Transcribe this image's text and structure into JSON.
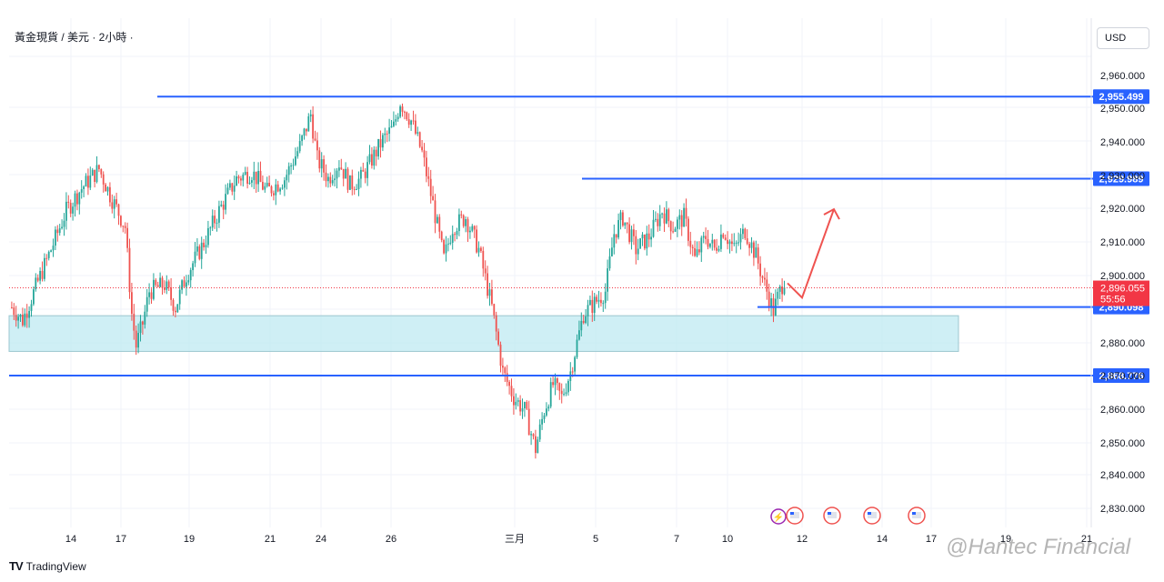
{
  "header": {
    "symbol_title": "黃金現貨 / 美元 · 2小時 ·"
  },
  "currency_button": {
    "label": "USD"
  },
  "branding": {
    "tradingview": "TradingView",
    "watermark": "@Hantec Financial"
  },
  "colors": {
    "up": "#26a69a",
    "down": "#ef5350",
    "level_line": "#2962ff",
    "zone_fill": "#bfeaf2",
    "price_badge": "#f23645",
    "arrow": "#ef5350"
  },
  "chart_data": {
    "type": "candlestick",
    "ylim": [
      2823,
      2968
    ],
    "y_ticks": [
      "2,960.000",
      "2,950.000",
      "2,940.000",
      "2,930.000",
      "2,920.000",
      "2,910.000",
      "2,900.000",
      "2,880.000",
      "2,870.000",
      "2,860.000",
      "2,850.000",
      "2,840.000",
      "2,830.000"
    ],
    "x_ticks": [
      "14",
      "17",
      "19",
      "21",
      "24",
      "26",
      "三月",
      "5",
      "7",
      "10",
      "12",
      "14",
      "17",
      "19",
      "21"
    ],
    "price_path_anchors": [
      [
        0,
        2890
      ],
      [
        5,
        2886
      ],
      [
        12,
        2898
      ],
      [
        18,
        2908
      ],
      [
        25,
        2920
      ],
      [
        32,
        2927
      ],
      [
        40,
        2933
      ],
      [
        45,
        2925
      ],
      [
        52,
        2915
      ],
      [
        55,
        2888
      ],
      [
        57,
        2878
      ],
      [
        60,
        2885
      ],
      [
        63,
        2895
      ],
      [
        70,
        2897
      ],
      [
        75,
        2890
      ],
      [
        80,
        2900
      ],
      [
        88,
        2910
      ],
      [
        95,
        2920
      ],
      [
        103,
        2930
      ],
      [
        110,
        2932
      ],
      [
        117,
        2926
      ],
      [
        125,
        2930
      ],
      [
        132,
        2940
      ],
      [
        137,
        2950
      ],
      [
        140,
        2936
      ],
      [
        145,
        2930
      ],
      [
        150,
        2935
      ],
      [
        155,
        2928
      ],
      [
        160,
        2930
      ],
      [
        165,
        2936
      ],
      [
        170,
        2942
      ],
      [
        175,
        2946
      ],
      [
        178,
        2954
      ],
      [
        183,
        2948
      ],
      [
        188,
        2938
      ],
      [
        193,
        2922
      ],
      [
        198,
        2905
      ],
      [
        202,
        2915
      ],
      [
        208,
        2918
      ],
      [
        214,
        2908
      ],
      [
        220,
        2890
      ],
      [
        225,
        2870
      ],
      [
        230,
        2862
      ],
      [
        235,
        2858
      ],
      [
        240,
        2846
      ],
      [
        244,
        2858
      ],
      [
        248,
        2866
      ],
      [
        252,
        2862
      ],
      [
        256,
        2870
      ],
      [
        262,
        2888
      ],
      [
        268,
        2892
      ],
      [
        272,
        2895
      ],
      [
        276,
        2913
      ],
      [
        280,
        2918
      ],
      [
        286,
        2908
      ],
      [
        292,
        2912
      ],
      [
        298,
        2920
      ],
      [
        303,
        2915
      ],
      [
        308,
        2918
      ],
      [
        313,
        2905
      ],
      [
        318,
        2912
      ],
      [
        322,
        2908
      ],
      [
        326,
        2914
      ],
      [
        331,
        2908
      ],
      [
        336,
        2914
      ],
      [
        341,
        2906
      ],
      [
        345,
        2897
      ],
      [
        349,
        2889
      ],
      [
        352,
        2895
      ],
      [
        354,
        2899
      ]
    ],
    "levels": [
      {
        "label": "2,955.499",
        "value": 2955.499
      },
      {
        "label": "2,929.989",
        "value": 2929.989
      },
      {
        "label": "2,890.098",
        "value": 2890.098
      },
      {
        "label": "2,868.776",
        "value": 2868.776
      }
    ],
    "zone": {
      "low": 2876.3,
      "high": 2887.4
    },
    "current_price": {
      "label": "2,896.055",
      "value": 2896.055,
      "countdown": "55:56"
    },
    "projection": {
      "points": [
        [
          2897.5,
          "now"
        ],
        [
          2893,
          "dip"
        ],
        [
          2920.5,
          "target"
        ]
      ]
    }
  }
}
